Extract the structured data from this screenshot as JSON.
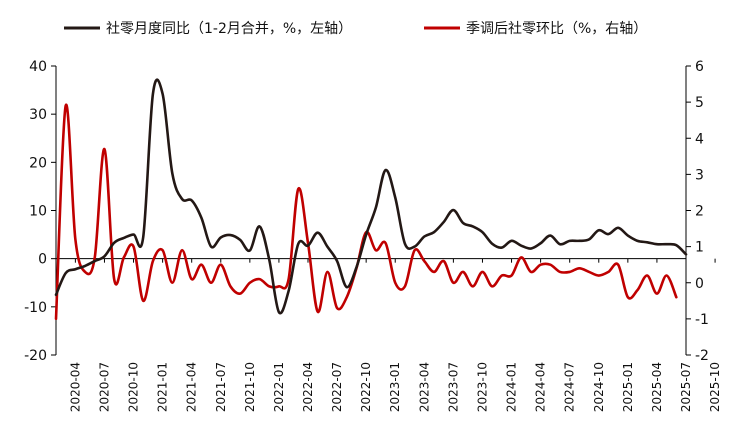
{
  "chart_data": {
    "type": "line",
    "legend": {
      "position": "top",
      "series": [
        "社零月度同比（1-2月合并，%，左轴）",
        "季调后社零环比（%，右轴）"
      ]
    },
    "grid": false,
    "y_left": {
      "ylim": [
        -20,
        40
      ],
      "ticks": [
        -20,
        -10,
        0,
        10,
        20,
        30,
        40
      ]
    },
    "y_right": {
      "ylim": [
        -2,
        6
      ],
      "ticks": [
        -2,
        -1,
        0,
        1,
        2,
        3,
        4,
        5,
        6
      ]
    },
    "x_tick_labels": [
      "2020-04",
      "2020-07",
      "2020-10",
      "2021-01",
      "2021-04",
      "2021-07",
      "2021-10",
      "2022-01",
      "2022-04",
      "2022-07",
      "2022-10",
      "2023-01",
      "2023-04",
      "2023-07",
      "2023-10",
      "2024-01",
      "2024-04",
      "2024-07",
      "2024-10",
      "2025-01",
      "2025-04",
      "2025-07",
      "2025-10"
    ],
    "x_start": "2020-02",
    "series": [
      {
        "name": "社零月度同比（1-2月合并，%，左轴）",
        "axis": "left",
        "color": "#231815",
        "values": [
          -7.5,
          -3.0,
          -2.2,
          -1.5,
          -0.5,
          0.5,
          3.3,
          4.3,
          5.0,
          4.5,
          34.2,
          34.2,
          17.7,
          12.4,
          12.1,
          8.5,
          2.5,
          4.4,
          4.9,
          3.9,
          1.7,
          6.7,
          -0.2,
          -11.1,
          -6.7,
          3.1,
          2.7,
          5.4,
          2.5,
          -0.5,
          -5.9,
          -1.8,
          5.0,
          10.6,
          18.4,
          12.7,
          3.1,
          2.5,
          4.6,
          5.5,
          7.6,
          10.1,
          7.4,
          6.7,
          5.5,
          3.1,
          2.3,
          3.7,
          2.7,
          2.1,
          3.2,
          4.8,
          3.0,
          3.7,
          3.7,
          4.0,
          5.9,
          5.1,
          6.4,
          4.8,
          3.7,
          3.4,
          3.0,
          3.0,
          2.8,
          0.9
        ]
      },
      {
        "name": "季调后社零环比（%，右轴）",
        "axis": "right",
        "color": "#c00000",
        "values": [
          -1.0,
          4.9,
          1.2,
          0.3,
          0.7,
          3.7,
          0.1,
          0.7,
          1.0,
          -0.5,
          0.6,
          0.9,
          0.0,
          0.9,
          0.1,
          0.5,
          0.0,
          0.5,
          -0.1,
          -0.3,
          0.0,
          0.1,
          -0.1,
          -0.1,
          0.1,
          2.6,
          1.1,
          -0.8,
          0.3,
          -0.7,
          -0.4,
          0.4,
          1.4,
          0.9,
          1.1,
          0.0,
          -0.1,
          0.9,
          0.6,
          0.3,
          0.6,
          0.0,
          0.3,
          -0.1,
          0.3,
          -0.1,
          0.2,
          0.2,
          0.7,
          0.3,
          0.5,
          0.5,
          0.3,
          0.3,
          0.4,
          0.3,
          0.2,
          0.3,
          0.5,
          -0.4,
          -0.2,
          0.2,
          -0.3,
          0.2,
          -0.4
        ]
      }
    ]
  }
}
